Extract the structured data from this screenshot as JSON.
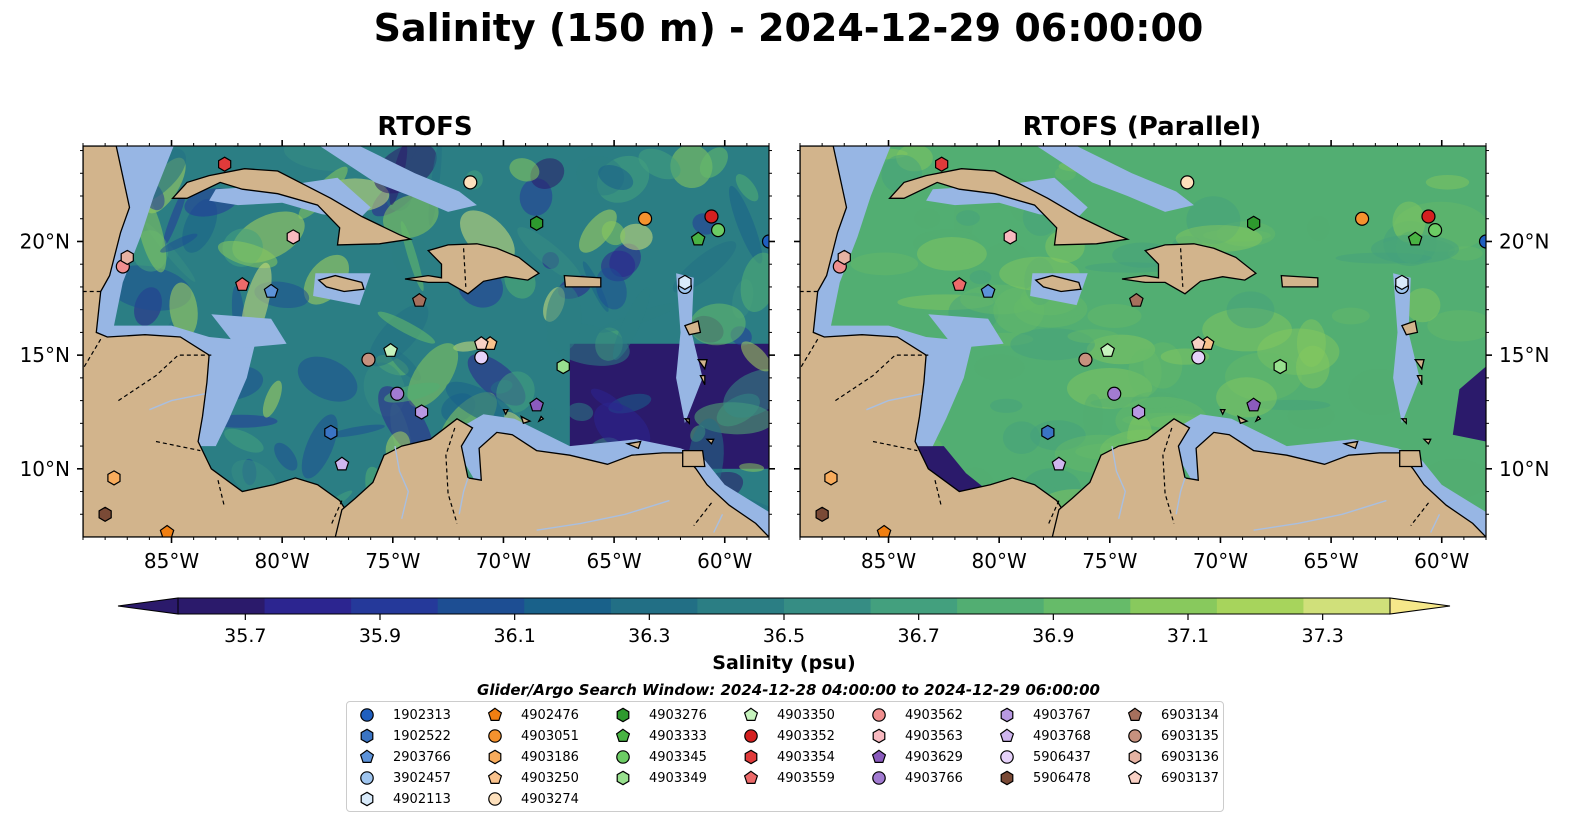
{
  "title": "Salinity (150 m) - 2024-12-29 06:00:00",
  "panels": [
    {
      "id": "rtofs",
      "title": "RTOFS",
      "style": "strong"
    },
    {
      "id": "parallel",
      "title": "RTOFS (Parallel)",
      "style": "smooth"
    }
  ],
  "map": {
    "lon_range": [
      -89,
      -58
    ],
    "lat_range": [
      7,
      24.2
    ],
    "lon_ticks": [
      {
        "value": -85,
        "label": "85°W"
      },
      {
        "value": -80,
        "label": "80°W"
      },
      {
        "value": -75,
        "label": "75°W"
      },
      {
        "value": -70,
        "label": "70°W"
      },
      {
        "value": -65,
        "label": "65°W"
      },
      {
        "value": -60,
        "label": "60°W"
      }
    ],
    "lat_ticks": [
      {
        "value": 10,
        "label": "10°N"
      },
      {
        "value": 15,
        "label": "15°N"
      },
      {
        "value": 20,
        "label": "20°N"
      }
    ],
    "colors": {
      "land": "#d2b48c",
      "shelf": "#97b6e4",
      "border": "#000000"
    }
  },
  "colorbar": {
    "label": "Salinity (psu)",
    "min": 35.6,
    "max": 37.4,
    "ticks": [
      "35.7",
      "35.9",
      "36.1",
      "36.3",
      "36.5",
      "36.7",
      "36.9",
      "37.1",
      "37.3"
    ],
    "tick_values": [
      35.7,
      35.9,
      36.1,
      36.3,
      36.5,
      36.7,
      36.9,
      37.1,
      37.3
    ],
    "colors": [
      "#2b1a6b",
      "#2c2590",
      "#25399a",
      "#1d4e93",
      "#19618a",
      "#226f85",
      "#2b7e84",
      "#368d84",
      "#43a07e",
      "#52ae72",
      "#66bb69",
      "#88c95d",
      "#a7d45c",
      "#d0e07a"
    ],
    "extend_low_color": "#2b1a6b",
    "extend_high_color": "#f6e88a"
  },
  "legend": {
    "title": "Glider/Argo Search Window: 2024-12-28 04:00:00 to 2024-12-29 06:00:00",
    "items": [
      {
        "id": "1902313",
        "marker": "circle",
        "color": "#1f5fbf",
        "lon": -58.0,
        "lat": 20.0
      },
      {
        "id": "1902522",
        "marker": "hexagon",
        "color": "#3a74c4",
        "lon": -77.8,
        "lat": 11.6
      },
      {
        "id": "2903766",
        "marker": "pentagon",
        "color": "#5d93d9",
        "lon": -80.5,
        "lat": 17.8
      },
      {
        "id": "3902457",
        "marker": "circle",
        "color": "#9fc5ef",
        "lon": -61.8,
        "lat": 18.0
      },
      {
        "id": "4902113",
        "marker": "hexagon",
        "color": "#d8eafa",
        "lon": -61.8,
        "lat": 18.2
      },
      {
        "id": "4902476",
        "marker": "pentagon",
        "color": "#f07f12",
        "lon": -85.2,
        "lat": 7.2
      },
      {
        "id": "4903051",
        "marker": "circle",
        "color": "#f5922e",
        "lon": -63.6,
        "lat": 21.0
      },
      {
        "id": "4903186",
        "marker": "hexagon",
        "color": "#f8ac5c",
        "lon": -87.6,
        "lat": 9.6
      },
      {
        "id": "4903250",
        "marker": "pentagon",
        "color": "#f9c28c",
        "lon": -70.6,
        "lat": 15.5
      },
      {
        "id": "4903274",
        "marker": "circle",
        "color": "#fde0bc",
        "lon": -71.5,
        "lat": 22.6
      },
      {
        "id": "4903276",
        "marker": "hexagon",
        "color": "#2e9a2e",
        "lon": -68.5,
        "lat": 20.8
      },
      {
        "id": "4903333",
        "marker": "pentagon",
        "color": "#49b343",
        "lon": -61.2,
        "lat": 20.1
      },
      {
        "id": "4903345",
        "marker": "circle",
        "color": "#6ccc64",
        "lon": -60.3,
        "lat": 20.5
      },
      {
        "id": "4903349",
        "marker": "hexagon",
        "color": "#98e08e",
        "lon": -67.3,
        "lat": 14.5
      },
      {
        "id": "4903350",
        "marker": "pentagon",
        "color": "#c6f3bd",
        "lon": -75.1,
        "lat": 15.2
      },
      {
        "id": "4903352",
        "marker": "circle",
        "color": "#d42020",
        "lon": -60.6,
        "lat": 21.1
      },
      {
        "id": "4903354",
        "marker": "hexagon",
        "color": "#e03a3a",
        "lon": -82.6,
        "lat": 23.4
      },
      {
        "id": "4903559",
        "marker": "pentagon",
        "color": "#ec6a6a",
        "lon": -81.8,
        "lat": 18.1
      },
      {
        "id": "4903562",
        "marker": "circle",
        "color": "#f08f8f",
        "lon": -87.2,
        "lat": 18.9
      },
      {
        "id": "4903563",
        "marker": "hexagon",
        "color": "#f8b9c0",
        "lon": -79.5,
        "lat": 20.2
      },
      {
        "id": "4903629",
        "marker": "pentagon",
        "color": "#8a5bbd",
        "lon": -68.5,
        "lat": 12.8
      },
      {
        "id": "4903766",
        "marker": "circle",
        "color": "#a27bd1",
        "lon": -74.8,
        "lat": 13.3
      },
      {
        "id": "4903767",
        "marker": "hexagon",
        "color": "#b899e2",
        "lon": -73.7,
        "lat": 12.5
      },
      {
        "id": "4903768",
        "marker": "pentagon",
        "color": "#cfb6ef",
        "lon": -77.3,
        "lat": 10.2
      },
      {
        "id": "5906437",
        "marker": "circle",
        "color": "#e6d2fa",
        "lon": -71.0,
        "lat": 14.9
      },
      {
        "id": "5906478",
        "marker": "hexagon",
        "color": "#7a4a36",
        "lon": -88.0,
        "lat": 8.0
      },
      {
        "id": "6903134",
        "marker": "pentagon",
        "color": "#a6705d",
        "lon": -73.8,
        "lat": 17.4
      },
      {
        "id": "6903135",
        "marker": "circle",
        "color": "#c6917e",
        "lon": -76.1,
        "lat": 14.8
      },
      {
        "id": "6903136",
        "marker": "hexagon",
        "color": "#e6b3a3",
        "lon": -87.0,
        "lat": 19.3
      },
      {
        "id": "6903137",
        "marker": "pentagon",
        "color": "#f9d1c5",
        "lon": -71.0,
        "lat": 15.5
      }
    ]
  }
}
